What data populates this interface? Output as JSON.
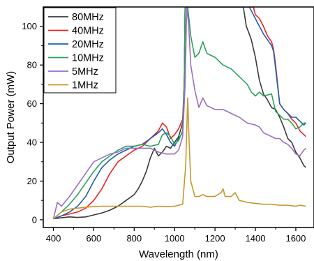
{
  "chart_data": {
    "type": "line",
    "title": "",
    "xlabel": "Wavelength (nm)",
    "ylabel": "Output Power (mW)",
    "xlim": [
      350,
      1690
    ],
    "ylim": [
      -4,
      110
    ],
    "xticks": [
      400,
      600,
      800,
      1000,
      1200,
      1400,
      1600
    ],
    "yticks": [
      0,
      20,
      40,
      60,
      80,
      100
    ],
    "grid": false,
    "legend_position": "top-left",
    "series": [
      {
        "name": "80MHz",
        "color": "#3a3a3a",
        "points": [
          [
            400,
            0.5
          ],
          [
            440,
            1
          ],
          [
            480,
            1.5
          ],
          [
            520,
            1.2
          ],
          [
            560,
            1.5
          ],
          [
            600,
            2.5
          ],
          [
            640,
            3.5
          ],
          [
            680,
            5
          ],
          [
            720,
            7
          ],
          [
            760,
            10
          ],
          [
            800,
            13
          ],
          [
            820,
            16
          ],
          [
            840,
            20
          ],
          [
            860,
            25
          ],
          [
            880,
            32
          ],
          [
            900,
            37
          ],
          [
            920,
            33
          ],
          [
            940,
            35
          ],
          [
            960,
            38
          ],
          [
            980,
            37
          ],
          [
            1000,
            40
          ],
          [
            1020,
            43
          ],
          [
            1040,
            50
          ],
          [
            1048,
            70
          ],
          [
            1052,
            110
          ],
          [
            1080,
            110
          ],
          [
            1100,
            110
          ],
          [
            1200,
            110
          ],
          [
            1300,
            110
          ],
          [
            1340,
            110
          ],
          [
            1355,
            100
          ],
          [
            1370,
            96
          ],
          [
            1380,
            93
          ],
          [
            1400,
            84
          ],
          [
            1420,
            72
          ],
          [
            1440,
            65
          ],
          [
            1460,
            62
          ],
          [
            1480,
            58
          ],
          [
            1500,
            57
          ],
          [
            1520,
            53
          ],
          [
            1540,
            48
          ],
          [
            1560,
            42
          ],
          [
            1580,
            40
          ],
          [
            1600,
            35
          ],
          [
            1620,
            32
          ],
          [
            1640,
            28
          ],
          [
            1650,
            27
          ]
        ]
      },
      {
        "name": "40MHz",
        "color": "#ee2222",
        "points": [
          [
            400,
            0.5
          ],
          [
            440,
            2
          ],
          [
            480,
            3
          ],
          [
            520,
            4
          ],
          [
            560,
            6
          ],
          [
            600,
            10
          ],
          [
            640,
            16
          ],
          [
            680,
            24
          ],
          [
            720,
            30
          ],
          [
            760,
            33
          ],
          [
            800,
            36
          ],
          [
            840,
            38
          ],
          [
            880,
            42
          ],
          [
            920,
            46
          ],
          [
            940,
            50
          ],
          [
            960,
            48
          ],
          [
            980,
            42
          ],
          [
            1000,
            44
          ],
          [
            1020,
            47
          ],
          [
            1040,
            52
          ],
          [
            1048,
            70
          ],
          [
            1052,
            110
          ],
          [
            1080,
            110
          ],
          [
            1200,
            110
          ],
          [
            1300,
            110
          ],
          [
            1390,
            110
          ],
          [
            1400,
            106
          ],
          [
            1420,
            104
          ],
          [
            1440,
            100
          ],
          [
            1460,
            95
          ],
          [
            1480,
            92
          ],
          [
            1490,
            88
          ],
          [
            1500,
            80
          ],
          [
            1520,
            60
          ],
          [
            1540,
            57
          ],
          [
            1560,
            55
          ],
          [
            1580,
            52
          ],
          [
            1600,
            50
          ],
          [
            1620,
            46
          ],
          [
            1640,
            44
          ],
          [
            1650,
            43
          ]
        ]
      },
      {
        "name": "20MHz",
        "color": "#1f5fb4",
        "points": [
          [
            400,
            0.5
          ],
          [
            440,
            2
          ],
          [
            480,
            4
          ],
          [
            520,
            7
          ],
          [
            560,
            12
          ],
          [
            600,
            20
          ],
          [
            640,
            27
          ],
          [
            680,
            31
          ],
          [
            720,
            34
          ],
          [
            760,
            36
          ],
          [
            800,
            38
          ],
          [
            840,
            39
          ],
          [
            880,
            42
          ],
          [
            920,
            45
          ],
          [
            940,
            47
          ],
          [
            960,
            44
          ],
          [
            980,
            40
          ],
          [
            1000,
            38
          ],
          [
            1020,
            42
          ],
          [
            1040,
            45
          ],
          [
            1048,
            70
          ],
          [
            1052,
            110
          ],
          [
            1080,
            110
          ],
          [
            1200,
            110
          ],
          [
            1300,
            110
          ],
          [
            1370,
            110
          ],
          [
            1380,
            108
          ],
          [
            1400,
            104
          ],
          [
            1420,
            100
          ],
          [
            1440,
            96
          ],
          [
            1460,
            93
          ],
          [
            1480,
            90
          ],
          [
            1490,
            87
          ],
          [
            1500,
            78
          ],
          [
            1520,
            60
          ],
          [
            1540,
            57
          ],
          [
            1560,
            55
          ],
          [
            1580,
            53
          ],
          [
            1600,
            53
          ],
          [
            1620,
            51
          ],
          [
            1640,
            49
          ],
          [
            1650,
            50
          ]
        ]
      },
      {
        "name": "10MHz",
        "color": "#2aa35a",
        "points": [
          [
            400,
            0.5
          ],
          [
            440,
            4
          ],
          [
            480,
            8
          ],
          [
            520,
            13
          ],
          [
            560,
            19
          ],
          [
            600,
            25
          ],
          [
            640,
            30
          ],
          [
            680,
            33
          ],
          [
            720,
            36
          ],
          [
            760,
            38
          ],
          [
            800,
            38
          ],
          [
            840,
            39
          ],
          [
            880,
            38
          ],
          [
            920,
            39
          ],
          [
            940,
            44
          ],
          [
            960,
            45
          ],
          [
            980,
            43
          ],
          [
            1000,
            39
          ],
          [
            1020,
            41
          ],
          [
            1040,
            46
          ],
          [
            1048,
            70
          ],
          [
            1052,
            110
          ],
          [
            1065,
            110
          ],
          [
            1080,
            95
          ],
          [
            1100,
            84
          ],
          [
            1120,
            86
          ],
          [
            1140,
            92
          ],
          [
            1160,
            86
          ],
          [
            1200,
            84
          ],
          [
            1240,
            80
          ],
          [
            1280,
            78
          ],
          [
            1320,
            74
          ],
          [
            1360,
            70
          ],
          [
            1380,
            66
          ],
          [
            1400,
            64
          ],
          [
            1420,
            66
          ],
          [
            1440,
            64
          ],
          [
            1480,
            65
          ],
          [
            1500,
            56
          ],
          [
            1520,
            54
          ],
          [
            1540,
            52
          ],
          [
            1560,
            52
          ],
          [
            1580,
            50
          ],
          [
            1600,
            47
          ],
          [
            1620,
            48
          ],
          [
            1640,
            50
          ],
          [
            1650,
            50
          ]
        ]
      },
      {
        "name": "5MHz",
        "color": "#9a6fc7",
        "points": [
          [
            400,
            0.5
          ],
          [
            420,
            9
          ],
          [
            440,
            7
          ],
          [
            480,
            12
          ],
          [
            520,
            18
          ],
          [
            560,
            24
          ],
          [
            600,
            30
          ],
          [
            640,
            32
          ],
          [
            680,
            34
          ],
          [
            720,
            35
          ],
          [
            760,
            37
          ],
          [
            800,
            37
          ],
          [
            840,
            37
          ],
          [
            880,
            37
          ],
          [
            920,
            35
          ],
          [
            960,
            34
          ],
          [
            1000,
            34
          ],
          [
            1020,
            36
          ],
          [
            1040,
            43
          ],
          [
            1052,
            70
          ],
          [
            1060,
            110
          ],
          [
            1070,
            100
          ],
          [
            1080,
            80
          ],
          [
            1100,
            67
          ],
          [
            1120,
            58
          ],
          [
            1140,
            63
          ],
          [
            1160,
            59
          ],
          [
            1200,
            57
          ],
          [
            1240,
            57
          ],
          [
            1280,
            55
          ],
          [
            1320,
            53
          ],
          [
            1360,
            50
          ],
          [
            1400,
            49
          ],
          [
            1420,
            48
          ],
          [
            1440,
            45
          ],
          [
            1480,
            43
          ],
          [
            1500,
            42
          ],
          [
            1520,
            42
          ],
          [
            1540,
            40
          ],
          [
            1560,
            39
          ],
          [
            1580,
            37
          ],
          [
            1600,
            34
          ],
          [
            1620,
            33
          ],
          [
            1640,
            36
          ],
          [
            1650,
            37
          ]
        ]
      },
      {
        "name": "1MHz",
        "color": "#c8962e",
        "points": [
          [
            400,
            0.5
          ],
          [
            440,
            4
          ],
          [
            480,
            5.5
          ],
          [
            520,
            6
          ],
          [
            560,
            6.5
          ],
          [
            600,
            6.8
          ],
          [
            640,
            7
          ],
          [
            680,
            7
          ],
          [
            720,
            7
          ],
          [
            760,
            7
          ],
          [
            800,
            7
          ],
          [
            840,
            7
          ],
          [
            880,
            6.5
          ],
          [
            920,
            7
          ],
          [
            960,
            6.8
          ],
          [
            1000,
            7
          ],
          [
            1040,
            8
          ],
          [
            1055,
            28
          ],
          [
            1065,
            63
          ],
          [
            1072,
            40
          ],
          [
            1080,
            20
          ],
          [
            1100,
            12
          ],
          [
            1120,
            12
          ],
          [
            1140,
            13
          ],
          [
            1160,
            12
          ],
          [
            1200,
            12
          ],
          [
            1230,
            14
          ],
          [
            1240,
            16
          ],
          [
            1250,
            12
          ],
          [
            1280,
            12
          ],
          [
            1300,
            14
          ],
          [
            1320,
            10
          ],
          [
            1360,
            9
          ],
          [
            1400,
            8.5
          ],
          [
            1440,
            8
          ],
          [
            1480,
            8
          ],
          [
            1520,
            7.5
          ],
          [
            1560,
            7.5
          ],
          [
            1600,
            7
          ],
          [
            1620,
            7.5
          ],
          [
            1650,
            7
          ]
        ]
      }
    ]
  }
}
